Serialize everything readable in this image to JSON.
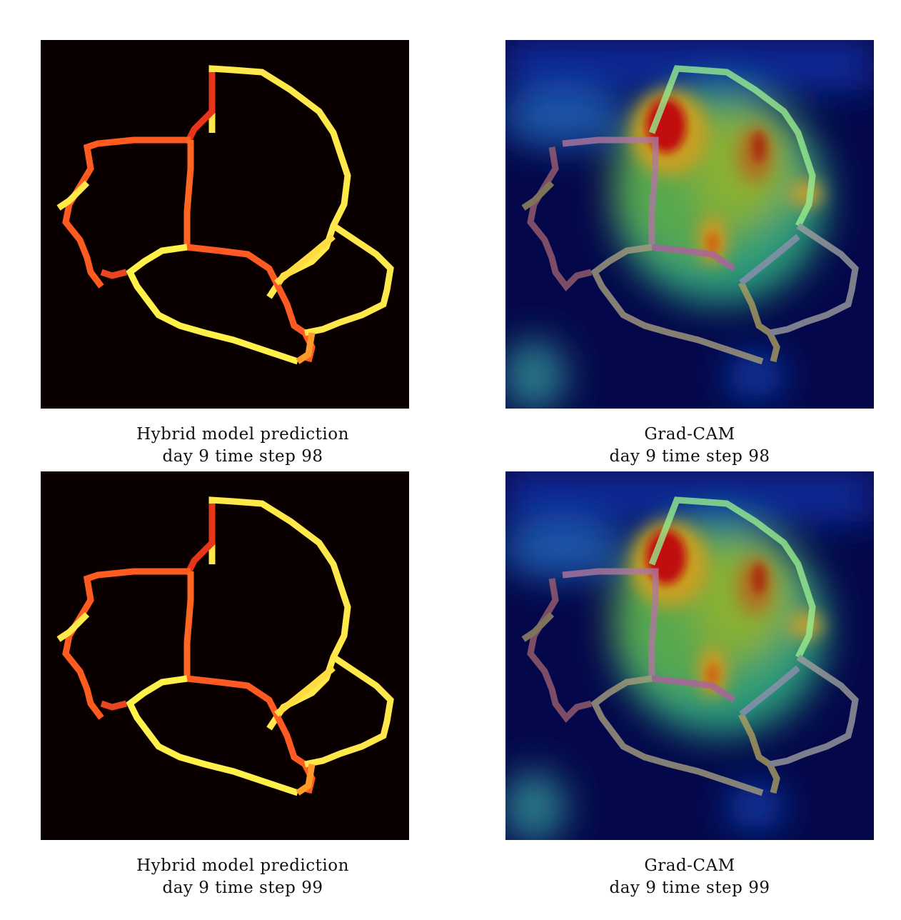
{
  "panels": [
    {
      "kind": "prediction",
      "title": "Hybrid model prediction",
      "subtitle": "day 9 time step 98"
    },
    {
      "kind": "gradcam",
      "title": "Grad-CAM",
      "subtitle": "day 9 time step 98"
    },
    {
      "kind": "prediction",
      "title": "Hybrid model prediction",
      "subtitle": "day 9 time step 99"
    },
    {
      "kind": "gradcam",
      "title": "Grad-CAM",
      "subtitle": "day 9 time step 99"
    }
  ],
  "colors": {
    "prediction_background": "#0a0000",
    "cam_background": "#04084a",
    "edge_yellow": "#fff04a",
    "edge_orange": "#ff9a2a",
    "edge_red": "#e63a14"
  }
}
